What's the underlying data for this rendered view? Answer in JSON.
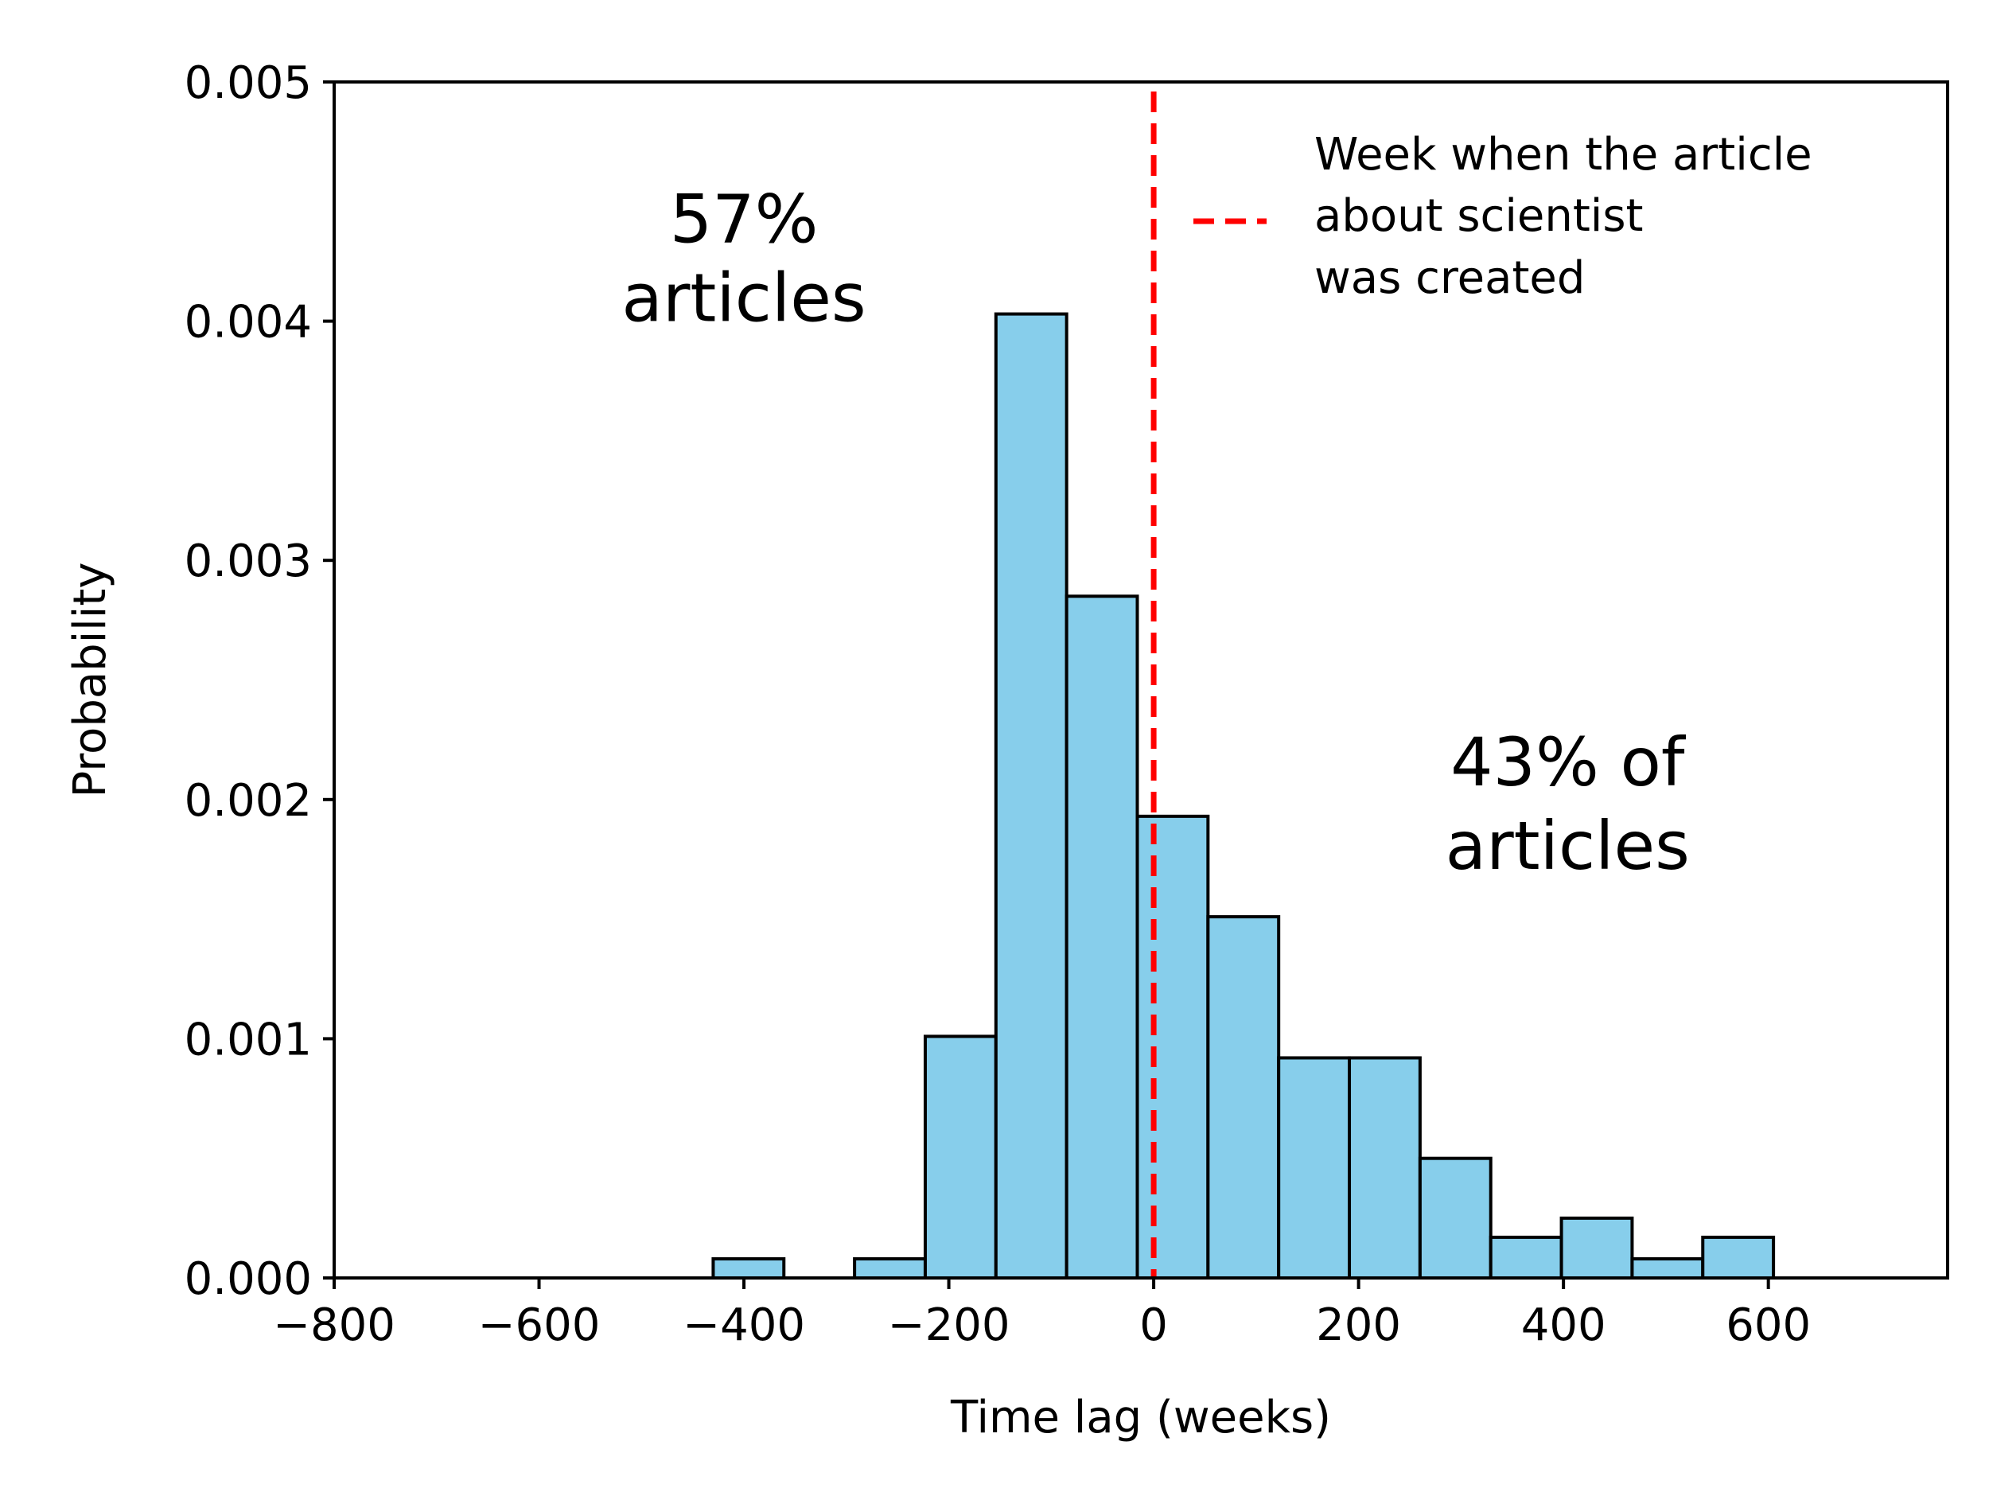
{
  "chart_data": {
    "type": "bar",
    "xlabel": "Time lag (weeks)",
    "ylabel": "Probability",
    "xlim": [
      -800,
      775
    ],
    "ylim": [
      0,
      0.005
    ],
    "xticks": [
      -800,
      -600,
      -400,
      -200,
      0,
      200,
      400,
      600
    ],
    "xtick_labels": [
      "−800",
      "−600",
      "−400",
      "−200",
      "0",
      "200",
      "400",
      "600"
    ],
    "yticks": [
      0,
      0.001,
      0.002,
      0.003,
      0.004,
      0.005
    ],
    "ytick_labels": [
      "0.000",
      "0.001",
      "0.002",
      "0.003",
      "0.004",
      "0.005"
    ],
    "grid": false,
    "bar_color": "#87ceeb",
    "bar_edge_color": "#000000",
    "bins": [
      {
        "x0": -430,
        "x1": -361,
        "value": 8e-05
      },
      {
        "x0": -361,
        "x1": -292,
        "value": 0.0
      },
      {
        "x0": -292,
        "x1": -223,
        "value": 8e-05
      },
      {
        "x0": -223,
        "x1": -154,
        "value": 0.00101
      },
      {
        "x0": -154,
        "x1": -85,
        "value": 0.00403
      },
      {
        "x0": -85,
        "x1": -16,
        "value": 0.00285
      },
      {
        "x0": -16,
        "x1": 53,
        "value": 0.00193
      },
      {
        "x0": 53,
        "x1": 122,
        "value": 0.00151
      },
      {
        "x0": 122,
        "x1": 191,
        "value": 0.00092
      },
      {
        "x0": 191,
        "x1": 260,
        "value": 0.00092
      },
      {
        "x0": 260,
        "x1": 329,
        "value": 0.0005
      },
      {
        "x0": 329,
        "x1": 398,
        "value": 0.00017
      },
      {
        "x0": 398,
        "x1": 467,
        "value": 0.00025
      },
      {
        "x0": 467,
        "x1": 536,
        "value": 8e-05
      },
      {
        "x0": 536,
        "x1": 605,
        "value": 0.00017
      }
    ],
    "vline": {
      "x": 0,
      "color": "#ff0000",
      "style": "dashed"
    },
    "legend": {
      "placement": "top-right",
      "entries": [
        {
          "lines": [
            "Week when the article",
            "about scientist",
            "was created"
          ],
          "color": "#ff0000",
          "style": "dashed"
        }
      ]
    },
    "annotations": [
      {
        "lines": [
          "57%",
          "articles"
        ]
      },
      {
        "lines": [
          "43% of",
          "articles"
        ]
      }
    ]
  }
}
